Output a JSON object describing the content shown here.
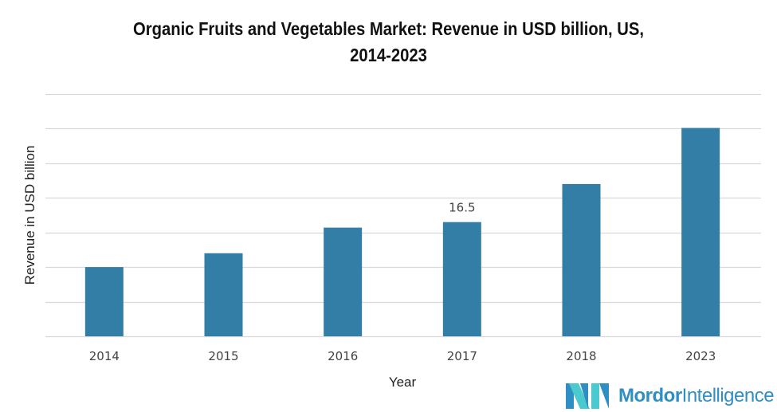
{
  "chart_data": {
    "type": "bar",
    "title_lines": [
      "Organic Fruits and Vegetables Market: Revenue in USD billion, US,",
      "2014-2023"
    ],
    "xlabel": "Year",
    "ylabel": "Revenue in USD billion",
    "categories": [
      "2014",
      "2015",
      "2016",
      "2017",
      "2018",
      "2023"
    ],
    "values": [
      10.0,
      12.0,
      15.7,
      16.5,
      22.0,
      30.1
    ],
    "data_labels": {
      "2017": "16.5"
    },
    "ylim": [
      0,
      35
    ],
    "grid_step": 5,
    "y_tick_labels_shown": false,
    "grid": true,
    "bar_color": "#337ea6",
    "grid_color": "#d9d9d9"
  },
  "branding": {
    "logo_bold": "Mordor",
    "logo_light": "Intelligence",
    "colors": [
      "#2f8ec4",
      "#4ac9cf"
    ]
  }
}
